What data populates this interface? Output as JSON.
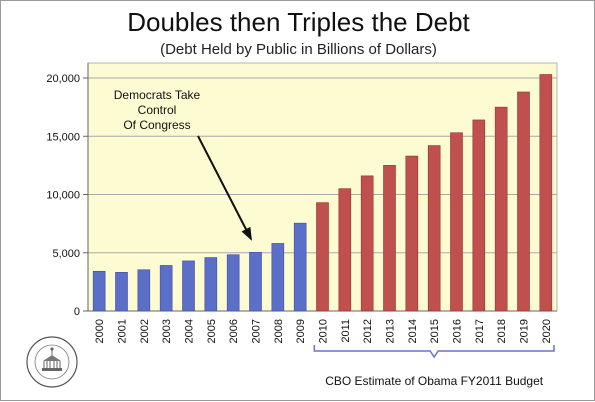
{
  "header": {
    "title": "Doubles then Triples the Debt",
    "subtitle": "(Debt Held by Public in Billions of Dollars)"
  },
  "annotations": {
    "arrow_note_lines": [
      "Democrats Take",
      "Control",
      "Of Congress"
    ],
    "bracket_label": "CBO Estimate of Obama FY2011 Budget"
  },
  "seal_text": "HOUSE BUDGET COMMITTEE · REPUBLICAN STAFF",
  "colors": {
    "historical_bar": "#5b6fc9",
    "projected_bar": "#c0504d",
    "plot_background": "#fdfbd2",
    "bracket": "#6a72c8"
  },
  "chart_data": {
    "type": "bar",
    "title": "Doubles then Triples the Debt",
    "subtitle": "(Debt Held by Public in Billions of Dollars)",
    "xlabel": "",
    "ylabel": "",
    "ylim": [
      0,
      20000
    ],
    "yticks": [
      0,
      5000,
      10000,
      15000,
      20000
    ],
    "ytick_labels": [
      "0",
      "5,000",
      "10,000",
      "15,000",
      "20,000"
    ],
    "grid": true,
    "categories": [
      "2000",
      "2001",
      "2002",
      "2003",
      "2004",
      "2005",
      "2006",
      "2007",
      "2008",
      "2009",
      "2010",
      "2011",
      "2012",
      "2013",
      "2014",
      "2015",
      "2016",
      "2017",
      "2018",
      "2019",
      "2020"
    ],
    "values": [
      3410,
      3320,
      3540,
      3910,
      4300,
      4590,
      4830,
      5040,
      5800,
      7540,
      9300,
      10500,
      11600,
      12500,
      13300,
      14200,
      15300,
      16400,
      17500,
      18800,
      20300
    ],
    "projected_from": "2010"
  }
}
